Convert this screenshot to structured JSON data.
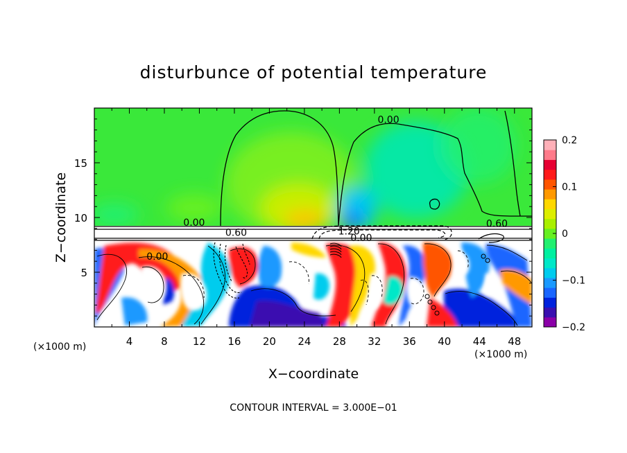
{
  "chart_data": {
    "type": "heatmap",
    "title": "disturbunce of potential temperature",
    "xlabel": "X−coordinate",
    "ylabel": "Z−coordinate",
    "xlim": [
      0,
      50
    ],
    "ylim": [
      0,
      20
    ],
    "x_ticks": [
      4,
      8,
      12,
      16,
      20,
      24,
      28,
      32,
      36,
      40,
      44,
      48
    ],
    "x_tick_labels": [
      "4",
      "8",
      "12",
      "16",
      "20",
      "24",
      "28",
      "32",
      "36",
      "40",
      "44",
      "48"
    ],
    "y_ticks": [
      5,
      10,
      15
    ],
    "y_tick_labels": [
      "5",
      "10",
      "15"
    ],
    "x_unit_left": "(×1000 m)",
    "x_unit_right": "(×1000 m)",
    "colorbar": {
      "min": -0.2,
      "max": 0.2,
      "tick_values": [
        0.2,
        0.1,
        0,
        -0.1,
        -0.2
      ],
      "tick_labels": [
        "0.2",
        "0.1",
        "0",
        "−0.1",
        "−0.2"
      ],
      "colors": [
        "#8b00a8",
        "#3a10b0",
        "#0022dd",
        "#1a66ff",
        "#1a99ff",
        "#00ccee",
        "#00e8c8",
        "#00f0a0",
        "#22f070",
        "#66f022",
        "#aaf000",
        "#ddee00",
        "#ffd800",
        "#ff9900",
        "#ff5500",
        "#ff1a1a",
        "#e60033",
        "#ff7a8a",
        "#ffb0b8"
      ]
    },
    "contour_labels": [
      {
        "text": "0.00",
        "x": 33.6,
        "z": 18.7
      },
      {
        "text": "0.00",
        "x": 11.4,
        "z": 9.3
      },
      {
        "text": "0.60",
        "x": 46.0,
        "z": 9.2
      },
      {
        "text": "0.60",
        "x": 16.2,
        "z": 8.4
      },
      {
        "text": "1.20",
        "x": 29.1,
        "z": 8.5
      },
      {
        "text": "0.00",
        "x": 7.2,
        "z": 6.2
      },
      {
        "text": "0.00",
        "x": 30.5,
        "z": 7.9
      }
    ],
    "contour_interval_text": "CONTOUR INTERVAL = 3.000E−01"
  }
}
